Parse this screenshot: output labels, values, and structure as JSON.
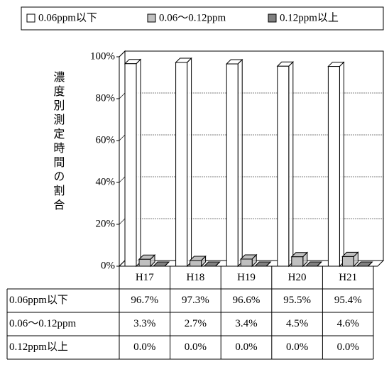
{
  "chart_data": {
    "type": "bar3d",
    "y_label": "濃度別測定時間の割合",
    "categories": [
      "H17",
      "H18",
      "H19",
      "H20",
      "H21"
    ],
    "series": [
      {
        "name": "0.06ppm以下",
        "color": "#ffffff",
        "values": [
          96.7,
          97.3,
          96.6,
          95.5,
          95.4
        ],
        "value_labels": [
          "96.7%",
          "97.3%",
          "96.6%",
          "95.5%",
          "95.4%"
        ]
      },
      {
        "name": "0.06～0.12ppm",
        "color": "#c0c0c0",
        "values": [
          3.3,
          2.7,
          3.4,
          4.5,
          4.6
        ],
        "value_labels": [
          "3.3%",
          "2.7%",
          "3.4%",
          "4.5%",
          "4.6%"
        ]
      },
      {
        "name": "0.12ppm以上",
        "color": "#808080",
        "values": [
          0.0,
          0.0,
          0.0,
          0.0,
          0.0
        ],
        "value_labels": [
          "0.0%",
          "0.0%",
          "0.0%",
          "0.0%",
          "0.0%"
        ]
      }
    ],
    "ylim": [
      0,
      100
    ],
    "yticks": [
      {
        "value": 0,
        "label": "0%"
      },
      {
        "value": 20,
        "label": "20%"
      },
      {
        "value": 40,
        "label": "40%"
      },
      {
        "value": 60,
        "label": "60%"
      },
      {
        "value": 80,
        "label": "80%"
      },
      {
        "value": 100,
        "label": "100%"
      }
    ],
    "grid": true
  }
}
